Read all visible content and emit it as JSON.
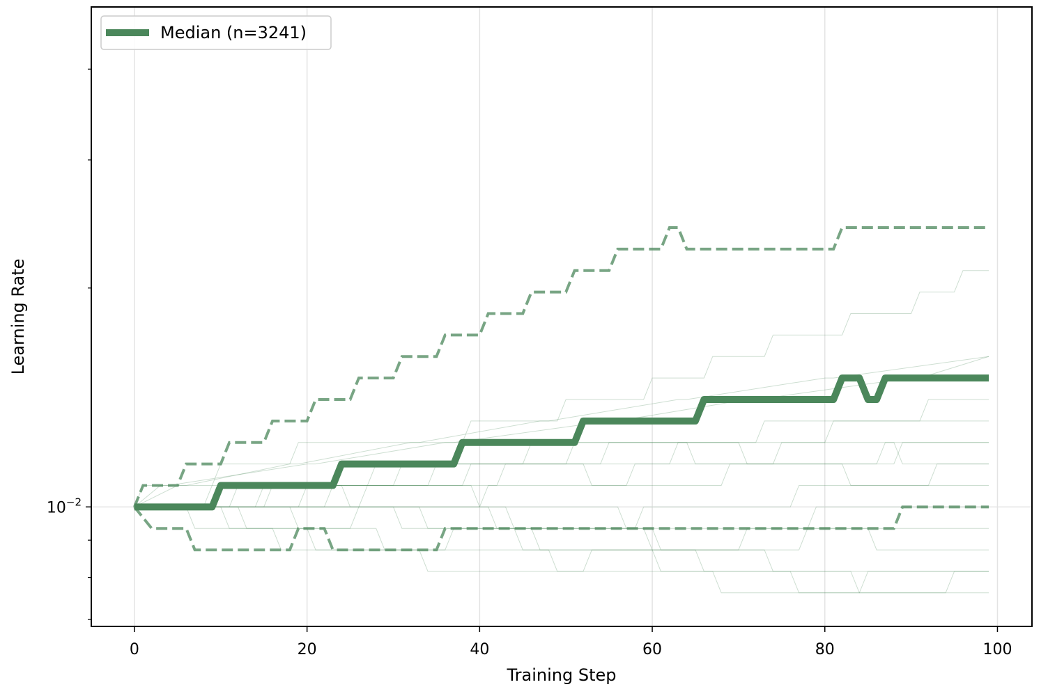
{
  "chart_data": {
    "type": "line",
    "title": "",
    "xlabel": "Training Step",
    "ylabel": "Learning Rate",
    "yscale": "log",
    "xlim": [
      -5,
      104
    ],
    "ylim": [
      0.00685,
      0.0487
    ],
    "x_ticks": [
      0,
      20,
      40,
      60,
      80,
      100
    ],
    "y_ticks": [
      {
        "value": 0.01,
        "base": "10",
        "exp": "−2"
      }
    ],
    "grid": true,
    "legend": {
      "position": "top-left",
      "entries": [
        "Median (n=3241)"
      ]
    },
    "colors": {
      "series": "#4b875b",
      "grid": "#e3e3e3",
      "axis": "#000000"
    },
    "series": [
      {
        "name": "Median (n=3241)",
        "role": "median",
        "x": [
          0,
          9,
          10,
          23,
          24,
          37,
          38,
          51,
          52,
          65,
          66,
          81,
          82,
          84,
          85,
          86,
          87,
          99
        ],
        "levels": [
          0,
          0,
          1,
          1,
          2,
          2,
          3,
          3,
          4,
          4,
          5,
          5,
          6,
          6,
          5,
          5,
          6,
          6
        ]
      },
      {
        "role": "upper-quantile",
        "x": [
          0,
          1,
          5,
          6,
          10,
          11,
          15,
          16,
          20,
          21,
          25,
          26,
          30,
          31,
          35,
          36,
          40,
          41,
          45,
          46,
          50,
          51,
          55,
          56,
          61,
          62,
          63,
          64,
          81,
          82,
          99
        ],
        "levels": [
          0,
          1,
          1,
          2,
          2,
          3,
          3,
          4,
          4,
          5,
          5,
          6,
          6,
          7,
          7,
          8,
          8,
          9,
          9,
          10,
          10,
          11,
          11,
          12,
          12,
          13,
          13,
          12,
          12,
          13,
          13
        ]
      },
      {
        "role": "lower-quantile",
        "x": [
          0,
          2,
          6,
          7,
          18,
          19,
          22,
          23,
          35,
          36,
          88,
          89,
          99
        ],
        "levels": [
          0,
          -1,
          -1,
          -2,
          -2,
          -1,
          -1,
          -2,
          -2,
          -1,
          -1,
          0,
          0
        ]
      },
      {
        "role": "sample",
        "x": [
          0,
          1,
          9,
          10,
          18,
          19,
          38,
          39,
          49,
          50,
          59,
          60,
          66,
          67,
          73,
          74,
          82,
          83,
          90,
          91,
          95,
          96,
          99
        ],
        "levels": [
          0,
          1,
          1,
          2,
          2,
          3,
          3,
          4,
          4,
          5,
          5,
          6,
          6,
          7,
          7,
          8,
          8,
          9,
          9,
          10,
          10,
          11,
          11
        ]
      },
      {
        "role": "sample",
        "x": [
          0,
          10,
          11,
          16,
          17,
          33,
          34,
          52,
          53,
          70,
          71,
          85,
          86,
          99
        ],
        "levels": [
          0,
          0,
          -1,
          -1,
          -2,
          -2,
          -3,
          -3,
          -2,
          -2,
          -1,
          -1,
          -2,
          -2
        ]
      },
      {
        "role": "sample",
        "x": [
          0,
          8,
          9,
          24,
          25,
          41,
          42,
          58,
          59,
          76,
          77,
          92,
          93,
          99
        ],
        "levels": [
          0,
          0,
          1,
          1,
          0,
          0,
          -1,
          -1,
          0,
          0,
          1,
          1,
          2,
          2
        ]
      },
      {
        "role": "sample",
        "x": [
          0,
          12,
          13,
          20,
          21,
          36,
          37,
          60,
          61,
          73,
          74,
          99
        ],
        "levels": [
          0,
          0,
          -1,
          -1,
          -2,
          -2,
          -1,
          -1,
          -2,
          -2,
          -3,
          -3
        ]
      },
      {
        "role": "sample",
        "x": [
          0,
          5,
          6,
          18,
          19,
          32,
          33,
          47,
          48,
          63,
          64,
          80,
          81,
          99
        ],
        "levels": [
          0,
          1,
          1,
          2,
          2,
          3,
          3,
          4,
          4,
          5,
          5,
          6,
          6,
          7
        ]
      },
      {
        "role": "sample",
        "x": [
          0,
          14,
          15,
          30,
          31,
          45,
          46,
          70,
          71,
          88,
          89,
          99
        ],
        "levels": [
          0,
          0,
          1,
          1,
          2,
          2,
          3,
          3,
          2,
          2,
          3,
          3
        ]
      },
      {
        "role": "sample",
        "x": [
          0,
          18,
          19,
          28,
          29,
          48,
          49,
          67,
          68,
          84,
          85,
          99
        ],
        "levels": [
          0,
          0,
          -1,
          -1,
          -2,
          -2,
          -3,
          -3,
          -4,
          -4,
          -3,
          -3
        ]
      },
      {
        "role": "sample",
        "x": [
          0,
          3,
          4,
          20,
          21,
          36,
          37,
          55,
          56,
          71,
          72,
          90,
          91,
          99
        ],
        "levels": [
          0,
          1,
          1,
          2,
          2,
          3,
          3,
          4,
          4,
          5,
          5,
          6,
          6,
          7
        ]
      },
      {
        "role": "sample",
        "x": [
          0,
          22,
          23,
          39,
          40,
          56,
          57,
          78,
          79,
          99
        ],
        "levels": [
          0,
          0,
          1,
          1,
          0,
          0,
          -1,
          -1,
          0,
          0
        ]
      },
      {
        "role": "sample",
        "x": [
          0,
          26,
          27,
          42,
          43,
          62,
          63,
          80,
          81,
          99
        ],
        "levels": [
          0,
          0,
          1,
          1,
          2,
          2,
          3,
          3,
          4,
          4
        ]
      },
      {
        "role": "sample",
        "x": [
          0,
          30,
          31,
          44,
          45,
          60,
          61,
          76,
          77,
          94,
          95,
          99
        ],
        "levels": [
          0,
          0,
          -1,
          -1,
          -2,
          -2,
          -3,
          -3,
          -4,
          -4,
          -3,
          -3
        ]
      },
      {
        "role": "sample",
        "x": [
          0,
          15,
          16,
          34,
          35,
          52,
          53,
          68,
          69,
          86,
          87,
          99
        ],
        "levels": [
          0,
          0,
          1,
          1,
          2,
          2,
          1,
          1,
          2,
          2,
          3,
          3
        ]
      },
      {
        "role": "sample",
        "x": [
          0,
          11,
          12,
          27,
          28,
          50,
          51,
          64,
          65,
          82,
          83,
          99
        ],
        "levels": [
          0,
          0,
          1,
          1,
          2,
          2,
          3,
          3,
          2,
          2,
          1,
          1
        ]
      },
      {
        "role": "sample",
        "x": [
          0,
          6,
          7,
          25,
          26,
          43,
          44,
          59,
          60,
          77,
          78,
          99
        ],
        "levels": [
          0,
          0,
          -1,
          -1,
          0,
          0,
          -1,
          -1,
          -2,
          -2,
          -1,
          -1
        ]
      },
      {
        "role": "sample",
        "x": [
          0,
          19,
          20,
          38,
          39,
          54,
          55,
          72,
          73,
          91,
          92,
          99
        ],
        "levels": [
          0,
          0,
          1,
          1,
          2,
          2,
          3,
          3,
          4,
          4,
          5,
          5
        ]
      },
      {
        "role": "sample",
        "x": [
          0,
          33,
          34,
          46,
          47,
          65,
          66,
          83,
          84,
          99
        ],
        "levels": [
          0,
          0,
          -1,
          -1,
          -2,
          -2,
          -3,
          -3,
          -4,
          -4
        ]
      },
      {
        "role": "sample",
        "x": [
          0,
          40,
          41,
          57,
          58,
          74,
          75,
          88,
          89,
          99
        ],
        "levels": [
          0,
          0,
          1,
          1,
          2,
          2,
          3,
          3,
          2,
          2
        ]
      }
    ],
    "level_ratio": 1.0704
  }
}
